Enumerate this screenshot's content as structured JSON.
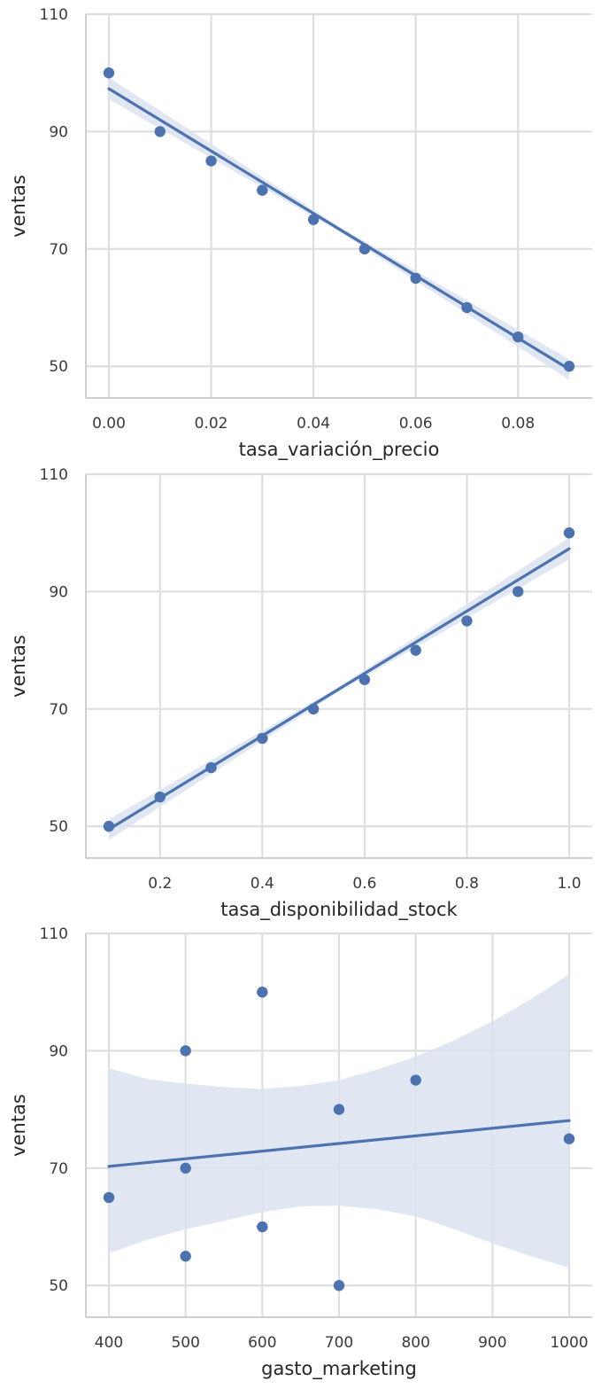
{
  "chart_data": [
    {
      "type": "scatter",
      "xlabel": "tasa_variación_precio",
      "ylabel": "ventas",
      "xlim": [
        -0.0045,
        0.0945
      ],
      "ylim": [
        44.6,
        110
      ],
      "xticks": [
        0.0,
        0.02,
        0.04,
        0.06,
        0.08
      ],
      "xtick_labels": [
        "0.00",
        "0.02",
        "0.04",
        "0.06",
        "0.08"
      ],
      "yticks": [
        50,
        70,
        90,
        110
      ],
      "ytick_labels": [
        "50",
        "70",
        "90",
        "110"
      ],
      "grid": true,
      "points": {
        "x": [
          0.0,
          0.01,
          0.02,
          0.03,
          0.04,
          0.05,
          0.06,
          0.07,
          0.08,
          0.09
        ],
        "y": [
          100,
          90,
          85,
          80,
          75,
          70,
          65,
          60,
          55,
          50
        ]
      },
      "regression_line": {
        "x": [
          0.0,
          0.09
        ],
        "y": [
          97.3,
          49.5
        ]
      },
      "confidence_band": {
        "x": [
          0.0,
          0.045,
          0.09
        ],
        "upper": [
          99.2,
          73.8,
          51.2
        ],
        "lower": [
          95.5,
          73.0,
          47.7
        ]
      },
      "colors": {
        "points": "#4c72b0",
        "line": "#4c72b0",
        "band": "#dbe3f1"
      }
    },
    {
      "type": "scatter",
      "xlabel": "tasa_disponibilidad_stock",
      "ylabel": "ventas",
      "xlim": [
        0.055,
        1.045
      ],
      "ylim": [
        44.6,
        110
      ],
      "xticks": [
        0.2,
        0.4,
        0.6,
        0.8,
        1.0
      ],
      "xtick_labels": [
        "0.2",
        "0.4",
        "0.6",
        "0.8",
        "1.0"
      ],
      "yticks": [
        50,
        70,
        90,
        110
      ],
      "ytick_labels": [
        "50",
        "70",
        "90",
        "110"
      ],
      "grid": true,
      "points": {
        "x": [
          0.1,
          0.2,
          0.3,
          0.4,
          0.5,
          0.6,
          0.7,
          0.8,
          0.9,
          1.0
        ],
        "y": [
          50,
          55,
          60,
          65,
          70,
          75,
          80,
          85,
          90,
          100
        ]
      },
      "regression_line": {
        "x": [
          0.1,
          1.0
        ],
        "y": [
          49.5,
          97.3
        ]
      },
      "confidence_band": {
        "x": [
          0.1,
          0.55,
          1.0
        ],
        "upper": [
          51.2,
          73.8,
          99.2
        ],
        "lower": [
          47.7,
          73.0,
          95.5
        ]
      },
      "colors": {
        "points": "#4c72b0",
        "line": "#4c72b0",
        "band": "#dbe3f1"
      }
    },
    {
      "type": "scatter",
      "xlabel": "gasto_marketing",
      "ylabel": "ventas",
      "xlim": [
        370,
        1030
      ],
      "ylim": [
        44.6,
        110
      ],
      "xticks": [
        400,
        500,
        600,
        700,
        800,
        900,
        1000
      ],
      "xtick_labels": [
        "400",
        "500",
        "600",
        "700",
        "800",
        "900",
        "1000"
      ],
      "yticks": [
        50,
        70,
        90,
        110
      ],
      "ytick_labels": [
        "50",
        "70",
        "90",
        "110"
      ],
      "grid": true,
      "points": {
        "x": [
          400,
          500,
          500,
          500,
          600,
          600,
          700,
          700,
          800,
          1000
        ],
        "y": [
          65,
          90,
          70,
          55,
          100,
          60,
          80,
          50,
          85,
          75
        ]
      },
      "regression_line": {
        "x": [
          400,
          1000
        ],
        "y": [
          70.3,
          78.1
        ]
      },
      "confidence_band": {
        "x": [
          400,
          450,
          500,
          550,
          600,
          650,
          700,
          750,
          800,
          850,
          900,
          950,
          1000
        ],
        "upper": [
          87.0,
          85.2,
          84.4,
          83.8,
          83.5,
          84.0,
          85.0,
          86.8,
          89.0,
          91.8,
          95.0,
          98.8,
          103.0
        ],
        "lower": [
          55.5,
          57.8,
          59.6,
          61.0,
          62.5,
          63.5,
          63.6,
          63.0,
          61.8,
          59.6,
          57.2,
          55.0,
          53.0
        ]
      },
      "colors": {
        "points": "#4c72b0",
        "line": "#4c72b0",
        "band": "#dbe3f1"
      }
    }
  ]
}
